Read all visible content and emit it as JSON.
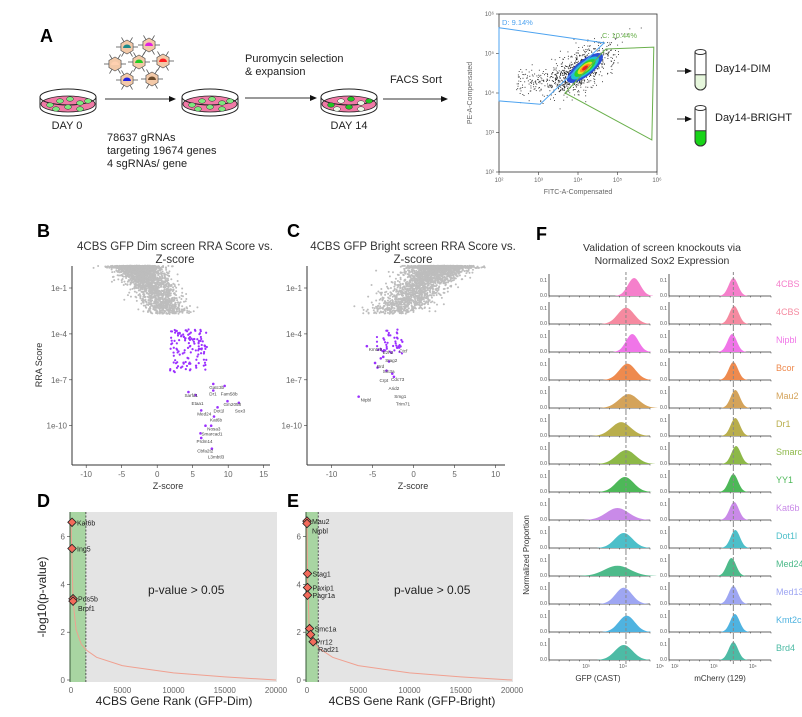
{
  "panels": {
    "a": "A",
    "b": "B",
    "c": "C",
    "d": "D",
    "e": "E",
    "f": "F"
  },
  "schematic": {
    "day0": "DAY 0",
    "day14": "DAY 14",
    "library": [
      "78637 gRNAs",
      "targeting 19674 genes",
      "4 sgRNAs/ gene"
    ],
    "step1": [
      "Puromycin selection",
      "& expansion"
    ],
    "step2": "FACS Sort",
    "tube_dim": "Day14-DIM",
    "tube_bright": "Day14-BRIGHT",
    "dish_color": "#f07aa6",
    "cell_color": "#7ee87e",
    "bright_cell_color": "#22c422"
  },
  "chart_data": [
    {
      "id": "facs",
      "type": "scatter",
      "xlabel": "FITC-A-Compensated",
      "ylabel": "PE-A-Compensated",
      "xscale": "log",
      "yscale": "log",
      "xlim": [
        100,
        1000000
      ],
      "ylim": [
        100,
        1000000
      ],
      "xticks": [
        "10²",
        "10³",
        "10⁴",
        "10⁵",
        "10⁶"
      ],
      "yticks": [
        "10²",
        "10³",
        "10⁴",
        "10⁵",
        "10⁶"
      ],
      "gates": [
        {
          "label": "D: 9.14%",
          "color": "#4da3f0",
          "vertices": [
            [
              100,
              450000
            ],
            [
              46000,
              186000
            ],
            [
              1100,
              5200
            ],
            [
              100,
              6300
            ]
          ]
        },
        {
          "label": "C: 10.44%",
          "color": "#6ab04c",
          "vertices": [
            [
              51000,
              130000
            ],
            [
              830000,
              145000
            ],
            [
              740000,
              650
            ],
            [
              4700,
              10000
            ],
            [
              43000,
              110000
            ]
          ]
        }
      ]
    },
    {
      "id": "B",
      "type": "scatter",
      "title": [
        "4CBS GFP Dim screen RRA Score vs.",
        "Z-score"
      ],
      "xlabel": "Z-score",
      "ylabel": "RRA Score",
      "xlim": [
        -12,
        17
      ],
      "yscale": "log",
      "xticks": [
        "-10",
        "-5",
        "0",
        "5",
        "10",
        "15"
      ],
      "yticks": [
        "1e-1",
        "1e-4",
        "1e-7",
        "1e-10"
      ],
      "background_color": "#bdbdbd",
      "hit_color": "#9b30ff",
      "labeled_points": [
        {
          "gene": "Gatc3b",
          "z": 7.9,
          "log10_rra": -7.27
        },
        {
          "gene": "Fam58b",
          "z": 9.5,
          "log10_rra": -7.4
        },
        {
          "gene": "Dr1",
          "z": 7.9,
          "log10_rra": -7.7
        },
        {
          "gene": "Sarfd1",
          "z": 4.4,
          "log10_rra": -7.8
        },
        {
          "gene": "Etaa1",
          "z": 5.4,
          "log10_rra": -8.0
        },
        {
          "gene": "Gm2058",
          "z": 9.9,
          "log10_rra": -8.4
        },
        {
          "gene": "Sox3",
          "z": 11.5,
          "log10_rra": -8.5
        },
        {
          "gene": "Dot1l",
          "z": 8.5,
          "log10_rra": -8.8
        },
        {
          "gene": "Med24",
          "z": 6.2,
          "log10_rra": -9.0
        },
        {
          "gene": "Kat6b",
          "z": 8.0,
          "log10_rra": -9.4
        },
        {
          "gene": "Nosa3",
          "z": 7.6,
          "log10_rra": -10.0
        },
        {
          "gene": "Smarcad1",
          "z": 6.8,
          "log10_rra": -10.0
        },
        {
          "gene": "Prdm14",
          "z": 6.1,
          "log10_rra": -10.5
        },
        {
          "gene": "Cbfa2t2",
          "z": 6.2,
          "log10_rra": -10.8
        },
        {
          "gene": "L3mbtl3",
          "z": 7.7,
          "log10_rra": -11.5
        }
      ]
    },
    {
      "id": "C",
      "type": "scatter",
      "title": [
        "4CBS GFP Bright screen RRA Score vs.",
        "Z-score"
      ],
      "xlabel": "Z-score",
      "ylabel": "",
      "xlim": [
        -13,
        11
      ],
      "yscale": "log",
      "xticks": [
        "-10",
        "-5",
        "0",
        "5",
        "10"
      ],
      "yticks": [
        "1e-1",
        "1e-4",
        "1e-7",
        "1e-10"
      ],
      "background_color": "#bdbdbd",
      "hit_color": "#9b30ff",
      "labeled_points": [
        {
          "gene": "Ezh2",
          "z": -4.0,
          "log10_rra": -5.0
        },
        {
          "gene": "Kmt2b",
          "z": -5.7,
          "log10_rra": -4.8
        },
        {
          "gene": "Ctcf",
          "z": -2.0,
          "log10_rra": -4.9
        },
        {
          "gene": "Stag2",
          "z": -3.7,
          "log10_rra": -5.5
        },
        {
          "gene": "Brd",
          "z": -4.7,
          "log10_rra": -5.9
        },
        {
          "gene": "Sin3a",
          "z": -4.0,
          "log10_rra": -5.6
        },
        {
          "gene": "Cdc73",
          "z": -3.0,
          "log10_rra": -5.8
        },
        {
          "gene": "Arid2",
          "z": -3.3,
          "log10_rra": -6.4
        },
        {
          "gene": "Crpt",
          "z": -4.4,
          "log10_rra": -6.2
        },
        {
          "gene": "Smg1",
          "z": -2.6,
          "log10_rra": -6.6
        },
        {
          "gene": "Trim71",
          "z": -2.4,
          "log10_rra": -6.8
        },
        {
          "gene": "Nipbl",
          "z": -6.7,
          "log10_rra": -8.1
        }
      ]
    },
    {
      "id": "D",
      "type": "line",
      "xlabel": "4CBS Gene Rank (GFP-Dim)",
      "ylabel": "-log10(p-value)",
      "xlim": [
        0,
        20000
      ],
      "ylim": [
        0,
        7
      ],
      "xticks": [
        "0",
        "5000",
        "10000",
        "15000",
        "20000"
      ],
      "yticks": [
        "0",
        "2",
        "4",
        "6"
      ],
      "significance_rank": 1450,
      "annotation": "p-value > 0.05",
      "curve": [
        [
          0,
          6.6
        ],
        [
          200,
          3.3
        ],
        [
          500,
          2.1
        ],
        [
          1000,
          1.5
        ],
        [
          1500,
          1.25
        ],
        [
          2500,
          0.95
        ],
        [
          5000,
          0.6
        ],
        [
          10000,
          0.3
        ],
        [
          15000,
          0.13
        ],
        [
          20000,
          0
        ]
      ],
      "points": [
        {
          "gene": "Kat6b",
          "rank": 100,
          "value": 6.6
        },
        {
          "gene": "Ing5",
          "rank": 100,
          "value": 5.5
        },
        {
          "gene": "Pds5b",
          "rank": 200,
          "value": 3.4
        },
        {
          "gene": "Brpf1",
          "rank": 200,
          "value": 3.3
        }
      ]
    },
    {
      "id": "E",
      "type": "line",
      "xlabel": "4CBS Gene Rank (GFP-Bright)",
      "ylabel": "",
      "xlim": [
        0,
        20000
      ],
      "ylim": [
        0,
        7
      ],
      "xticks": [
        "0",
        "5000",
        "10000",
        "15000",
        "20000"
      ],
      "yticks": [
        "0",
        "2",
        "4",
        "6"
      ],
      "significance_rank": 1100,
      "annotation": "p-value > 0.05",
      "curve": [
        [
          0,
          6.6
        ],
        [
          50,
          4.4
        ],
        [
          200,
          2.3
        ],
        [
          600,
          1.6
        ],
        [
          1100,
          1.35
        ],
        [
          2500,
          0.95
        ],
        [
          5000,
          0.6
        ],
        [
          10000,
          0.3
        ],
        [
          15000,
          0.13
        ],
        [
          20000,
          0
        ]
      ],
      "points": [
        {
          "gene": "Mau2",
          "rank": 0,
          "value": 6.65
        },
        {
          "gene": "Nipbl",
          "rank": 0,
          "value": 6.55
        },
        {
          "gene": "Stag1",
          "rank": 50,
          "value": 4.45
        },
        {
          "gene": "Paxip1",
          "rank": 50,
          "value": 3.87
        },
        {
          "gene": "Pagr1a",
          "rank": 50,
          "value": 3.55
        },
        {
          "gene": "Smc1a",
          "rank": 250,
          "value": 2.15
        },
        {
          "gene": "Prr12",
          "rank": 350,
          "value": 1.9
        },
        {
          "gene": "Rad21",
          "rank": 600,
          "value": 1.6
        }
      ]
    },
    {
      "id": "F",
      "type": "area",
      "title": [
        "Validation of screen knockouts via",
        "Normalized Sox2 Expression"
      ],
      "ylabel": "Normalized Proportion",
      "yticks": [
        "0.0",
        "0.1"
      ],
      "panels": [
        {
          "xlabel": "GFP (CAST)",
          "xticks": [
            "10³",
            "10⁴",
            "10⁵"
          ],
          "reference_log10": 4.08
        },
        {
          "xlabel": "mCherry (129)",
          "xticks": [
            "10²",
            "10³",
            "10⁴"
          ],
          "reference_log10": 3.5
        }
      ],
      "rows": [
        {
          "label": "4CBS G",
          "color": "#f57fcb",
          "gfp_peak_log10": 4.3,
          "gfp_sd": 0.17,
          "mcherry_peak_log10": 3.5
        },
        {
          "label": "4CBS",
          "color": "#f58aa0",
          "gfp_peak_log10": 4.08,
          "gfp_sd": 0.22,
          "mcherry_peak_log10": 3.52
        },
        {
          "label": "Nipbl",
          "color": "#f075e8",
          "gfp_peak_log10": 4.25,
          "gfp_sd": 0.17,
          "mcherry_peak_log10": 3.47
        },
        {
          "label": "Bcor",
          "color": "#ee8a4e",
          "gfp_peak_log10": 4.12,
          "gfp_sd": 0.22,
          "mcherry_peak_log10": 3.5
        },
        {
          "label": "Mau2",
          "color": "#d4a35a",
          "gfp_peak_log10": 4.15,
          "gfp_sd": 0.26,
          "mcherry_peak_log10": 3.55
        },
        {
          "label": "Dr1",
          "color": "#b9ae4c",
          "gfp_peak_log10": 3.95,
          "gfp_sd": 0.26,
          "mcherry_peak_log10": 3.55
        },
        {
          "label": "Smarca",
          "color": "#8db848",
          "gfp_peak_log10": 4.08,
          "gfp_sd": 0.26,
          "mcherry_peak_log10": 3.57
        },
        {
          "label": "YY1",
          "color": "#4db858",
          "gfp_peak_log10": 4.05,
          "gfp_sd": 0.24,
          "mcherry_peak_log10": 3.5
        },
        {
          "label": "Kat6b",
          "color": "#c98ae8",
          "gfp_peak_log10": 3.85,
          "gfp_sd": 0.3,
          "mcherry_peak_log10": 3.52
        },
        {
          "label": "Dot1l",
          "color": "#4dbfc9",
          "gfp_peak_log10": 4.02,
          "gfp_sd": 0.24,
          "mcherry_peak_log10": 3.55
        },
        {
          "label": "Med24",
          "color": "#4dba8a",
          "gfp_peak_log10": 3.85,
          "gfp_sd": 0.35,
          "mcherry_peak_log10": 3.45
        },
        {
          "label": "Med13",
          "color": "#9ea6f2",
          "gfp_peak_log10": 4.02,
          "gfp_sd": 0.22,
          "mcherry_peak_log10": 3.5
        },
        {
          "label": "Kmt2c",
          "color": "#4fb3e0",
          "gfp_peak_log10": 4.1,
          "gfp_sd": 0.22,
          "mcherry_peak_log10": 3.54
        },
        {
          "label": "Brd4",
          "color": "#4dbba5",
          "gfp_peak_log10": 4.02,
          "gfp_sd": 0.24,
          "mcherry_peak_log10": 3.5
        }
      ]
    }
  ]
}
